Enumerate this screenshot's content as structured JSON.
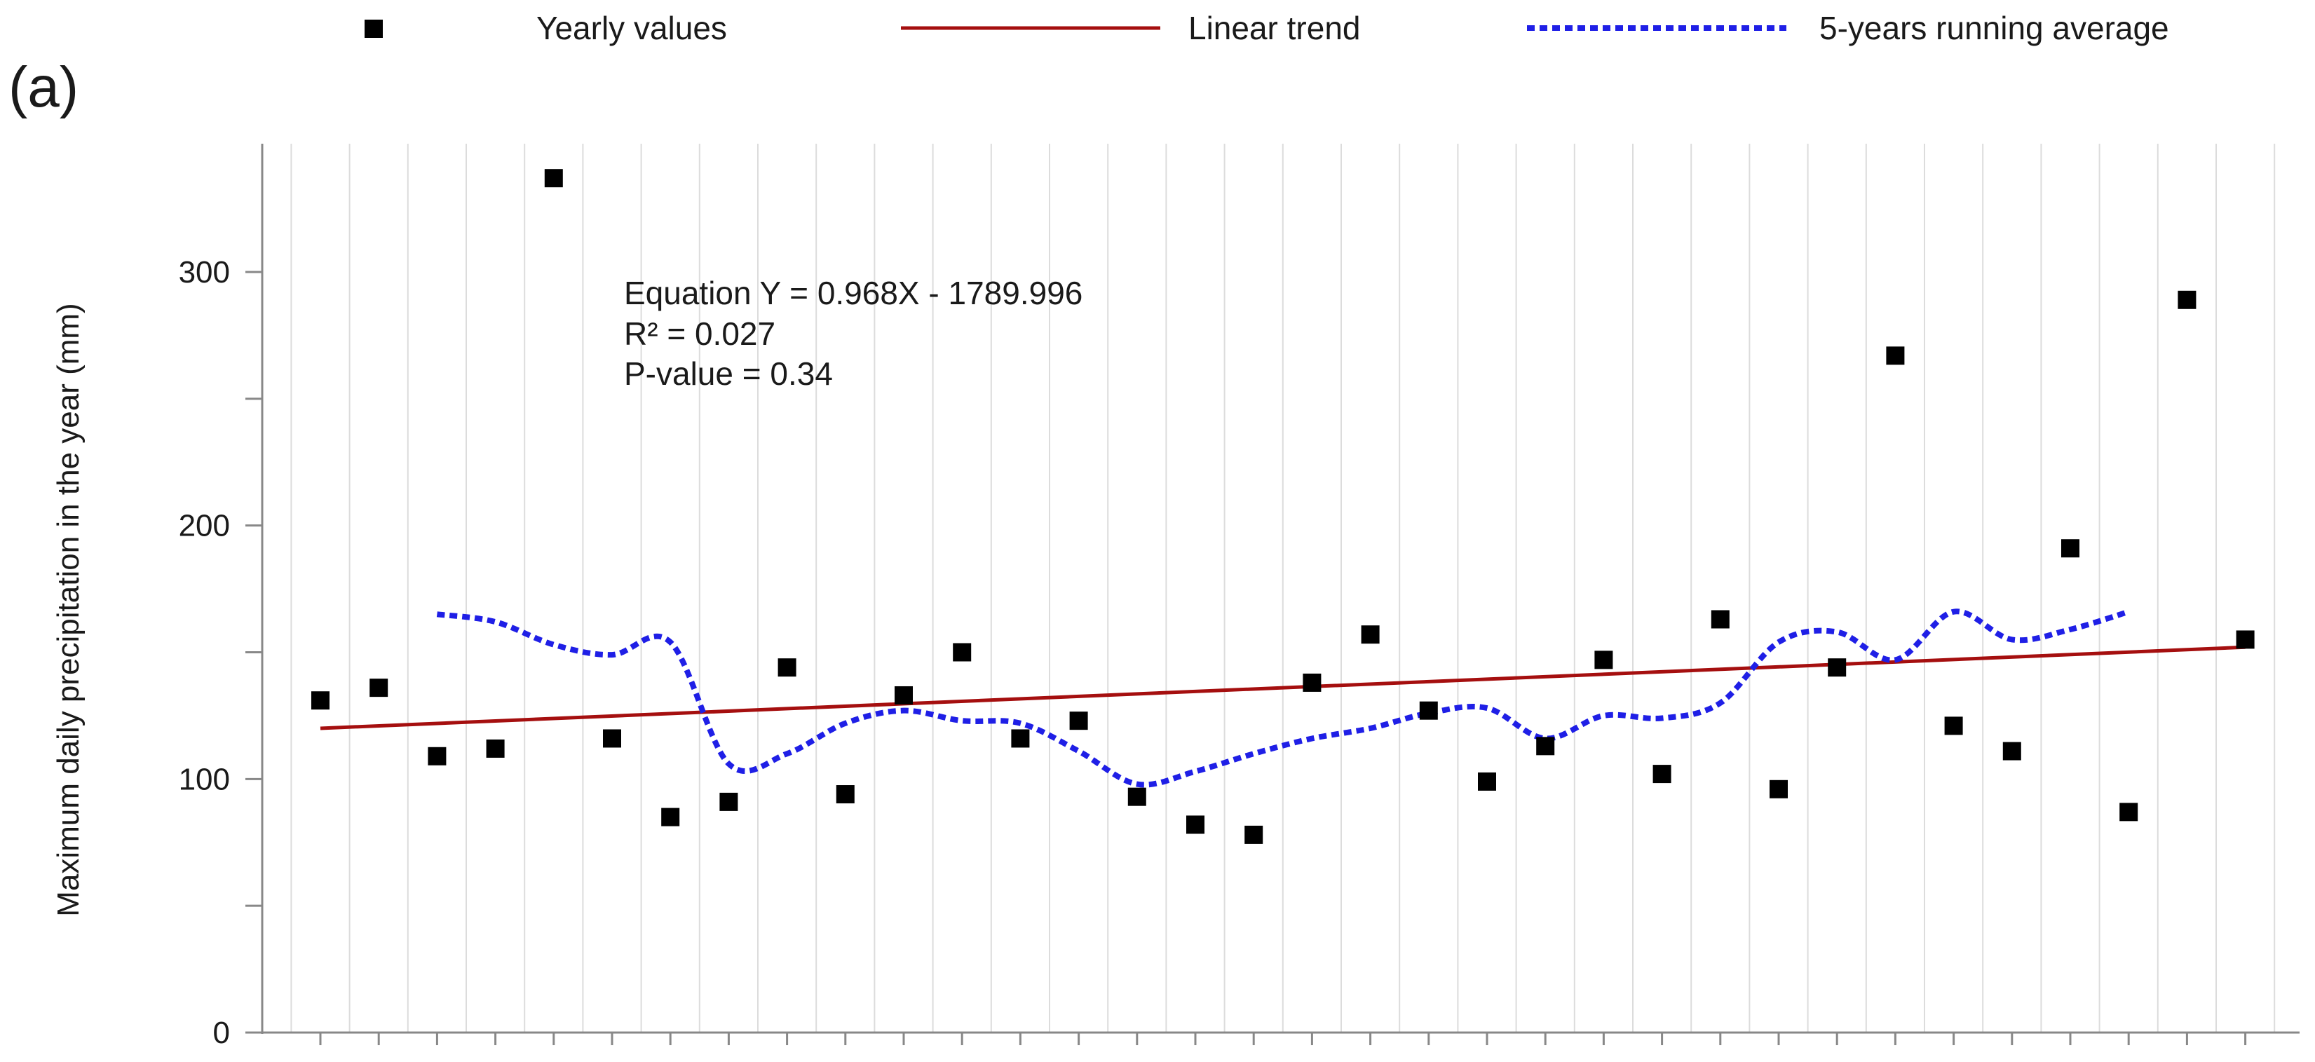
{
  "panel_label": "(a)",
  "legend": {
    "position": "top",
    "items": [
      {
        "label": "Yearly values",
        "marker": "square",
        "color": "#000000"
      },
      {
        "label": "Linear trend",
        "marker": "solid-line",
        "color": "#a50f0f"
      },
      {
        "label": "5-years running average",
        "marker": "dotted-line",
        "color": "#1f1fe6"
      }
    ]
  },
  "annotation": {
    "equation": "Equation Y = 0.968X - 1789.996",
    "r2": "R² = 0.027",
    "pvalue": "P-value = 0.34"
  },
  "chart_data": {
    "type": "scatter",
    "ylabel": "Maximum daily precipitation in the year (mm)",
    "xlabel": "",
    "ylim": [
      0,
      350
    ],
    "yticks": [
      0,
      100,
      200,
      300
    ],
    "y_minor_step": 50,
    "x_tick_labels_visible": false,
    "grid": {
      "vertical": true,
      "horizontal": false
    },
    "series": [
      {
        "name": "Yearly values",
        "kind": "points",
        "color": "#000000",
        "x": [
          1,
          2,
          3,
          4,
          5,
          6,
          7,
          8,
          9,
          10,
          11,
          12,
          13,
          14,
          15,
          16,
          17,
          18,
          19,
          20,
          21,
          22,
          23,
          24,
          25,
          26,
          27,
          28,
          29,
          30,
          31,
          32,
          33,
          34
        ],
        "values": [
          131,
          136,
          109,
          112,
          337,
          116,
          85,
          91,
          144,
          94,
          133,
          150,
          116,
          123,
          93,
          82,
          78,
          138,
          157,
          127,
          99,
          113,
          147,
          102,
          163,
          96,
          144,
          267,
          121,
          111,
          191,
          87,
          289,
          155
        ]
      },
      {
        "name": "Linear trend",
        "kind": "line",
        "color": "#a50f0f",
        "x": [
          1,
          34
        ],
        "values": [
          120,
          152
        ]
      },
      {
        "name": "5-years running average",
        "kind": "dotted-line",
        "color": "#1f1fe6",
        "x": [
          3,
          4,
          5,
          6,
          7,
          8,
          9,
          10,
          11,
          12,
          13,
          14,
          15,
          16,
          17,
          18,
          19,
          20,
          21,
          22,
          23,
          24,
          25,
          26,
          27,
          28,
          29,
          30,
          31,
          32
        ],
        "values": [
          165,
          162,
          153,
          149,
          154,
          106,
          110,
          122,
          127,
          123,
          122,
          111,
          98,
          103,
          110,
          116,
          120,
          126,
          128,
          116,
          125,
          124,
          130,
          154,
          158,
          147,
          166,
          155,
          159,
          166
        ]
      }
    ]
  }
}
